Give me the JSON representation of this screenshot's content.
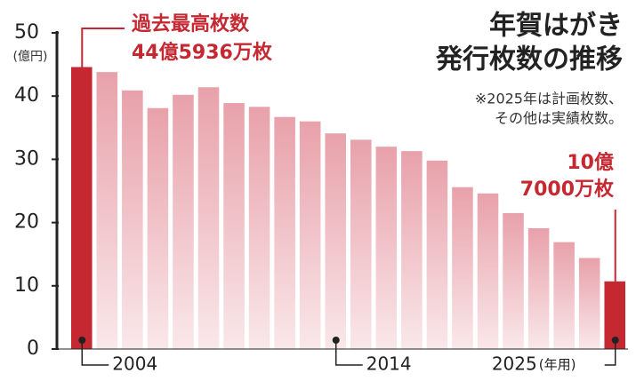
{
  "chart_data": {
    "type": "bar",
    "title": [
      "年賀はがき",
      "発行枚数の推移"
    ],
    "note": [
      "※2025年は計画枚数、",
      "その他は実績枚数。"
    ],
    "y_unit": "(億円)",
    "annotations": [
      "過去最高枚数",
      "44億5936万枚",
      "10億",
      "7000万枚"
    ],
    "categories": [
      "2004",
      null,
      null,
      null,
      null,
      null,
      null,
      null,
      null,
      null,
      "2014",
      null,
      null,
      null,
      null,
      null,
      null,
      null,
      null,
      null,
      null,
      "2025"
    ],
    "x_suffix": "(年用)",
    "values": [
      44.5936,
      43.8,
      40.9,
      38.1,
      40.2,
      41.4,
      38.9,
      38.3,
      36.7,
      36.0,
      34.1,
      33.1,
      32.0,
      31.3,
      29.8,
      25.6,
      24.6,
      21.5,
      19.1,
      16.9,
      14.4,
      10.7
    ],
    "colors": [
      "#c62832",
      "#e8a1aa",
      "#e8a1aa",
      "#e8a1aa",
      "#e8a1aa",
      "#e8a1aa",
      "#e8a1aa",
      "#e8a1aa",
      "#e8a1aa",
      "#e8a1aa",
      "#e8a1aa",
      "#e8a1aa",
      "#e8a1aa",
      "#e8a1aa",
      "#e8a1aa",
      "#e8a1aa",
      "#e8a1aa",
      "#e8a1aa",
      "#e8a1aa",
      "#e8a1aa",
      "#e8a1aa",
      "#c62832"
    ],
    "ylim": [
      0,
      50
    ],
    "yticks": [
      0,
      10,
      20,
      30,
      40,
      50
    ]
  }
}
